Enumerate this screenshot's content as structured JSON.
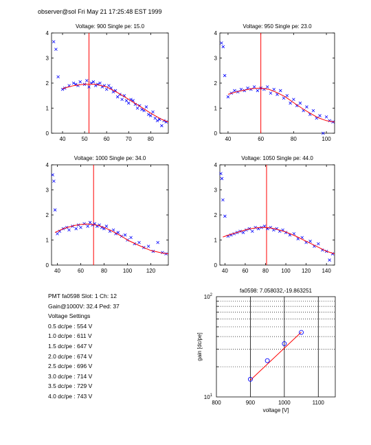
{
  "header": "observer@sol Fri May 21 17:25:48 EST 1999",
  "info": {
    "lines": [
      "PMT fa0598 Slot: 1 Ch: 12",
      "Gain@1000V: 32.4 Ped: 37",
      "Voltage Settings",
      "0.5 dc/pe : 554 V",
      "1.0 dc/pe : 611 V",
      "1.5 dc/pe : 647 V",
      "2.0 dc/pe : 674 V",
      "2.5 dc/pe : 696 V",
      "3.0 dc/pe : 714 V",
      "3.5 dc/pe : 729 V",
      "4.0 dc/pe : 743 V"
    ]
  },
  "colors": {
    "data": "#0000ff",
    "fit": "#ff0000",
    "marker": "#ff0000",
    "axis": "#000000"
  },
  "chart_data": [
    {
      "type": "scatter",
      "title": "Voltage: 900 Single pe: 15.0",
      "xlim": [
        35,
        88
      ],
      "ylim": [
        0,
        4
      ],
      "xticks": [
        40,
        50,
        60,
        70,
        80
      ],
      "yticks": [
        0,
        1,
        2,
        3,
        4
      ],
      "marker_x": 52,
      "fit": {
        "x": [
          40,
          45,
          50,
          55,
          60,
          65,
          70,
          75,
          80,
          85,
          88
        ],
        "y": [
          1.78,
          1.9,
          1.96,
          1.95,
          1.85,
          1.62,
          1.35,
          1.08,
          0.8,
          0.55,
          0.45
        ]
      },
      "points": {
        "x": [
          36,
          37,
          38,
          40,
          41,
          43,
          45,
          46,
          47,
          48,
          50,
          51,
          52,
          53,
          54,
          55,
          56,
          57,
          58,
          59,
          60,
          61,
          62,
          63,
          64,
          65,
          66,
          67,
          68,
          69,
          70,
          71,
          72,
          73,
          74,
          75,
          76,
          77,
          78,
          79,
          80,
          81,
          82,
          83,
          84,
          85,
          86,
          87
        ],
        "y": [
          3.65,
          3.35,
          2.25,
          1.75,
          1.8,
          1.9,
          2.0,
          1.95,
          1.9,
          2.05,
          1.95,
          2.1,
          1.85,
          2.0,
          2.05,
          1.9,
          1.95,
          2.0,
          1.85,
          1.9,
          1.75,
          1.9,
          1.8,
          1.65,
          1.7,
          1.45,
          1.55,
          1.35,
          1.5,
          1.3,
          1.2,
          1.35,
          1.3,
          1.15,
          1.0,
          1.1,
          0.95,
          0.9,
          1.05,
          0.75,
          0.7,
          0.85,
          0.6,
          0.5,
          0.55,
          0.3,
          0.5,
          0.45
        ]
      }
    },
    {
      "type": "scatter",
      "title": "Voltage: 950 Single pe: 23.0",
      "xlim": [
        35,
        105
      ],
      "ylim": [
        0,
        4
      ],
      "xticks": [
        40,
        60,
        80,
        100
      ],
      "yticks": [
        0,
        1,
        2,
        3,
        4
      ],
      "marker_x": 60,
      "fit": {
        "x": [
          40,
          45,
          50,
          55,
          60,
          65,
          70,
          75,
          80,
          85,
          90,
          95,
          100,
          105
        ],
        "y": [
          1.55,
          1.65,
          1.72,
          1.78,
          1.8,
          1.75,
          1.62,
          1.45,
          1.22,
          1.0,
          0.8,
          0.62,
          0.5,
          0.45
        ]
      },
      "points": {
        "x": [
          36,
          37,
          38,
          40,
          42,
          44,
          46,
          48,
          50,
          52,
          54,
          56,
          58,
          60,
          62,
          64,
          66,
          68,
          70,
          72,
          74,
          76,
          78,
          80,
          82,
          84,
          86,
          88,
          90,
          92,
          94,
          96,
          98,
          100,
          102,
          104
        ],
        "y": [
          3.6,
          3.45,
          2.3,
          1.45,
          1.6,
          1.7,
          1.65,
          1.75,
          1.7,
          1.8,
          1.75,
          1.85,
          1.7,
          1.8,
          1.75,
          1.85,
          1.6,
          1.75,
          1.55,
          1.7,
          1.4,
          1.5,
          1.2,
          1.35,
          1.1,
          1.2,
          0.9,
          1.05,
          0.75,
          0.9,
          0.6,
          0.7,
          0.0,
          0.65,
          0.5,
          0.45
        ]
      }
    },
    {
      "type": "scatter",
      "title": "Voltage: 1000 Single pe: 34.0",
      "xlim": [
        35,
        135
      ],
      "ylim": [
        0,
        4
      ],
      "xticks": [
        40,
        60,
        80,
        100,
        120
      ],
      "yticks": [
        0,
        1,
        2,
        3,
        4
      ],
      "marker_x": 71,
      "fit": {
        "x": [
          38,
          45,
          50,
          55,
          60,
          65,
          70,
          75,
          80,
          85,
          90,
          95,
          100,
          110,
          120,
          130,
          135
        ],
        "y": [
          1.3,
          1.45,
          1.52,
          1.58,
          1.62,
          1.64,
          1.62,
          1.58,
          1.5,
          1.4,
          1.28,
          1.15,
          1.0,
          0.78,
          0.58,
          0.48,
          0.45
        ]
      },
      "points": {
        "x": [
          36,
          37,
          38,
          40,
          42,
          45,
          48,
          50,
          53,
          56,
          58,
          60,
          63,
          66,
          68,
          70,
          72,
          74,
          76,
          78,
          80,
          82,
          85,
          88,
          90,
          92,
          95,
          98,
          100,
          103,
          106,
          110,
          114,
          118,
          122,
          126,
          130,
          133
        ],
        "y": [
          3.6,
          3.35,
          2.2,
          1.25,
          1.35,
          1.45,
          1.5,
          1.4,
          1.55,
          1.45,
          1.6,
          1.5,
          1.65,
          1.55,
          1.7,
          1.6,
          1.65,
          1.55,
          1.6,
          1.5,
          1.45,
          1.55,
          1.35,
          1.4,
          1.25,
          1.3,
          1.15,
          1.2,
          1.0,
          1.1,
          0.85,
          0.9,
          0.7,
          0.75,
          0.55,
          0.9,
          0.5,
          0.45
        ]
      }
    },
    {
      "type": "scatter",
      "title": "Voltage: 1050 Single pe: 44.0",
      "xlim": [
        35,
        148
      ],
      "ylim": [
        0,
        4
      ],
      "xticks": [
        40,
        60,
        80,
        100,
        120,
        140
      ],
      "yticks": [
        0,
        1,
        2,
        3,
        4
      ],
      "marker_x": 81,
      "fit": {
        "x": [
          38,
          45,
          50,
          55,
          60,
          65,
          70,
          75,
          80,
          85,
          90,
          100,
          110,
          120,
          130,
          140,
          148
        ],
        "y": [
          1.12,
          1.22,
          1.28,
          1.34,
          1.4,
          1.45,
          1.48,
          1.5,
          1.5,
          1.48,
          1.44,
          1.32,
          1.15,
          0.95,
          0.75,
          0.55,
          0.45
        ]
      },
      "points": {
        "x": [
          36,
          37,
          38,
          40,
          43,
          46,
          49,
          52,
          55,
          58,
          61,
          64,
          67,
          70,
          73,
          76,
          79,
          82,
          85,
          88,
          91,
          94,
          97,
          100,
          104,
          108,
          112,
          116,
          120,
          124,
          128,
          132,
          136,
          140,
          143,
          146
        ],
        "y": [
          3.65,
          3.45,
          2.6,
          1.95,
          1.15,
          1.2,
          1.25,
          1.3,
          1.35,
          1.3,
          1.4,
          1.45,
          1.35,
          1.5,
          1.45,
          1.5,
          1.55,
          1.45,
          1.5,
          1.4,
          1.45,
          1.35,
          1.4,
          1.3,
          1.2,
          1.25,
          1.05,
          1.1,
          0.9,
          0.95,
          0.75,
          0.85,
          0.6,
          0.55,
          0.2,
          0.45
        ]
      }
    },
    {
      "type": "line",
      "title": "fa0598: 7.058032,-19.863251",
      "xlabel": "voltage [V]",
      "ylabel": "gain [dc/pe]",
      "xlim": [
        800,
        1150
      ],
      "ylim": [
        10,
        100
      ],
      "yscale": "log",
      "xticks": [
        800,
        900,
        1000,
        1100
      ],
      "yticks": [
        10,
        100
      ],
      "ytick_labels": [
        {
          "base": "10",
          "exp": "1"
        },
        {
          "base": "10",
          "exp": "2"
        }
      ],
      "grid": true,
      "series": [
        {
          "x": [
            900,
            950,
            1000,
            1050
          ],
          "y": [
            15.0,
            23.0,
            34.0,
            44.0
          ],
          "marker": "circle"
        }
      ],
      "fit": {
        "x": [
          900,
          1050
        ],
        "y": [
          14.7,
          44.3
        ]
      }
    }
  ]
}
